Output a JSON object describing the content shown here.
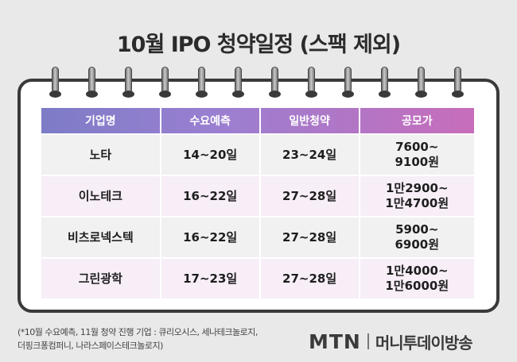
{
  "title": "10월 IPO 청약일정 (스팩 제외)",
  "table": {
    "headers": [
      "기업명",
      "수요예측",
      "일반청약",
      "공모가"
    ],
    "rows": [
      {
        "company": "노타",
        "demand": "14~20일",
        "subscription": "23~24일",
        "price_line1": "7600~",
        "price_line2": "9100원"
      },
      {
        "company": "이노테크",
        "demand": "16~22일",
        "subscription": "27~28일",
        "price_line1": "1만2900~",
        "price_line2": "1만4700원"
      },
      {
        "company": "비츠로넥스텍",
        "demand": "16~22일",
        "subscription": "27~28일",
        "price_line1": "5900~",
        "price_line2": "6900원"
      },
      {
        "company": "그린광학",
        "demand": "17~23일",
        "subscription": "27~28일",
        "price_line1": "1만4000~",
        "price_line2": "1만6000원"
      }
    ]
  },
  "footnote": {
    "line1": "(*10월 수요예측, 11월 청약 진행 기업 : 큐리오시스, 세나테크놀로지,",
    "line2": "더핑크퐁컴퍼니, 나라스페이스테크놀로지)"
  },
  "logo": {
    "brand": "MTN",
    "name": "머니투데이방송"
  },
  "colors": {
    "header_start": "#7d7cc6",
    "header_end": "#c76dbb",
    "row_odd": "#f1f1f2",
    "row_even": "#f7eef8"
  }
}
